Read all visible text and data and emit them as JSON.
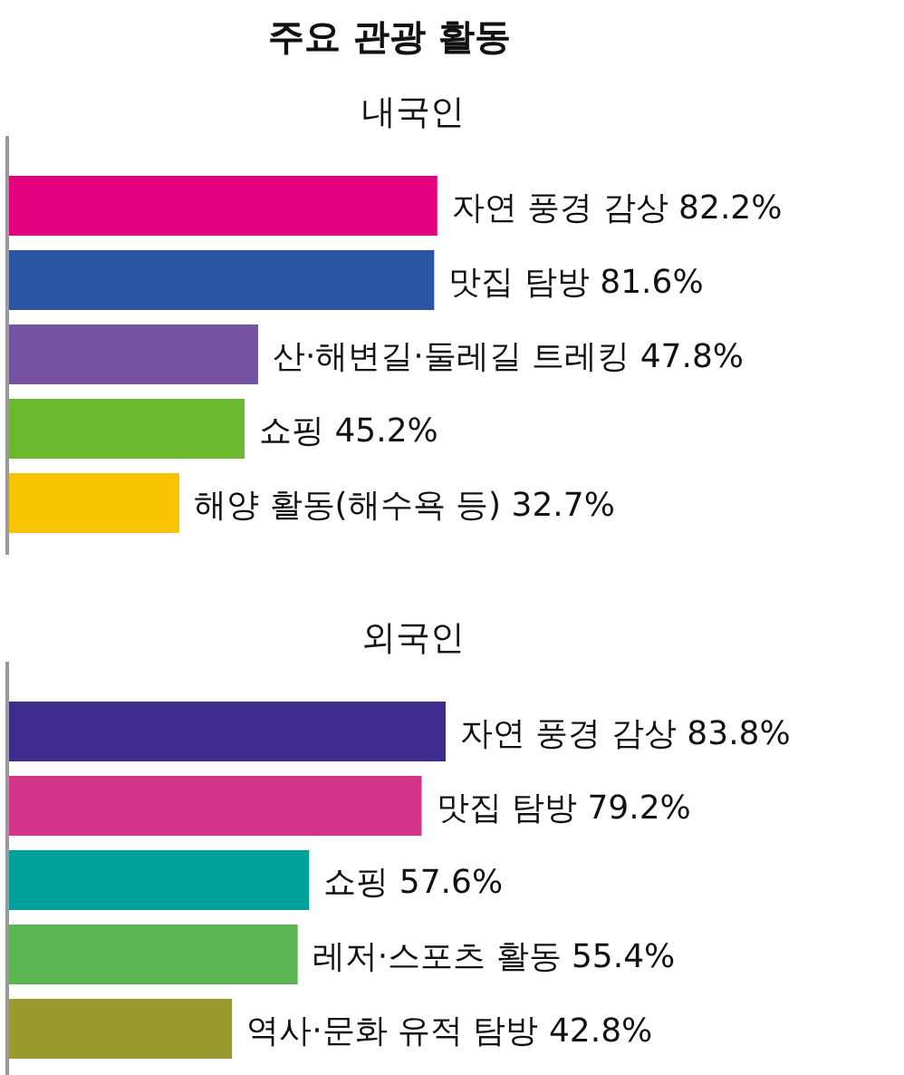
{
  "chart_data": [
    {
      "type": "bar",
      "orientation": "horizontal",
      "title": "주요 관광 활동",
      "subtitle": "내국인",
      "categories": [
        null,
        null,
        null,
        null,
        null
      ],
      "values": [
        82.2,
        81.6,
        47.8,
        45.2,
        32.7
      ],
      "value_labels": [
        "자연 풍경 감상 82.2%",
        "맛집 탐방 81.6%",
        "산·해변길·둘레길 트레킹 47.8%",
        "쇼핑 45.2%",
        "해양 활동(해수욕 등) 32.7%"
      ],
      "colors": [
        "#e4007f",
        "#2a56a3",
        "#7653a2",
        "#6ab92e",
        "#f8c300"
      ]
    },
    {
      "type": "bar",
      "orientation": "horizontal",
      "subtitle": "외국인",
      "categories": [
        null,
        null,
        null,
        null,
        null
      ],
      "values": [
        83.8,
        79.2,
        57.6,
        55.4,
        42.8
      ],
      "value_labels": [
        "자연 풍경 감상 83.8%",
        "맛집 탐방 79.2%",
        "쇼핑 57.6%",
        "레저·스포츠 활동 55.4%",
        "역사·문화 유적 탐방 42.8%"
      ],
      "colors": [
        "#3d2c8b",
        "#d4348a",
        "#00a19a",
        "#5ab552",
        "#9a9a2e"
      ]
    }
  ]
}
